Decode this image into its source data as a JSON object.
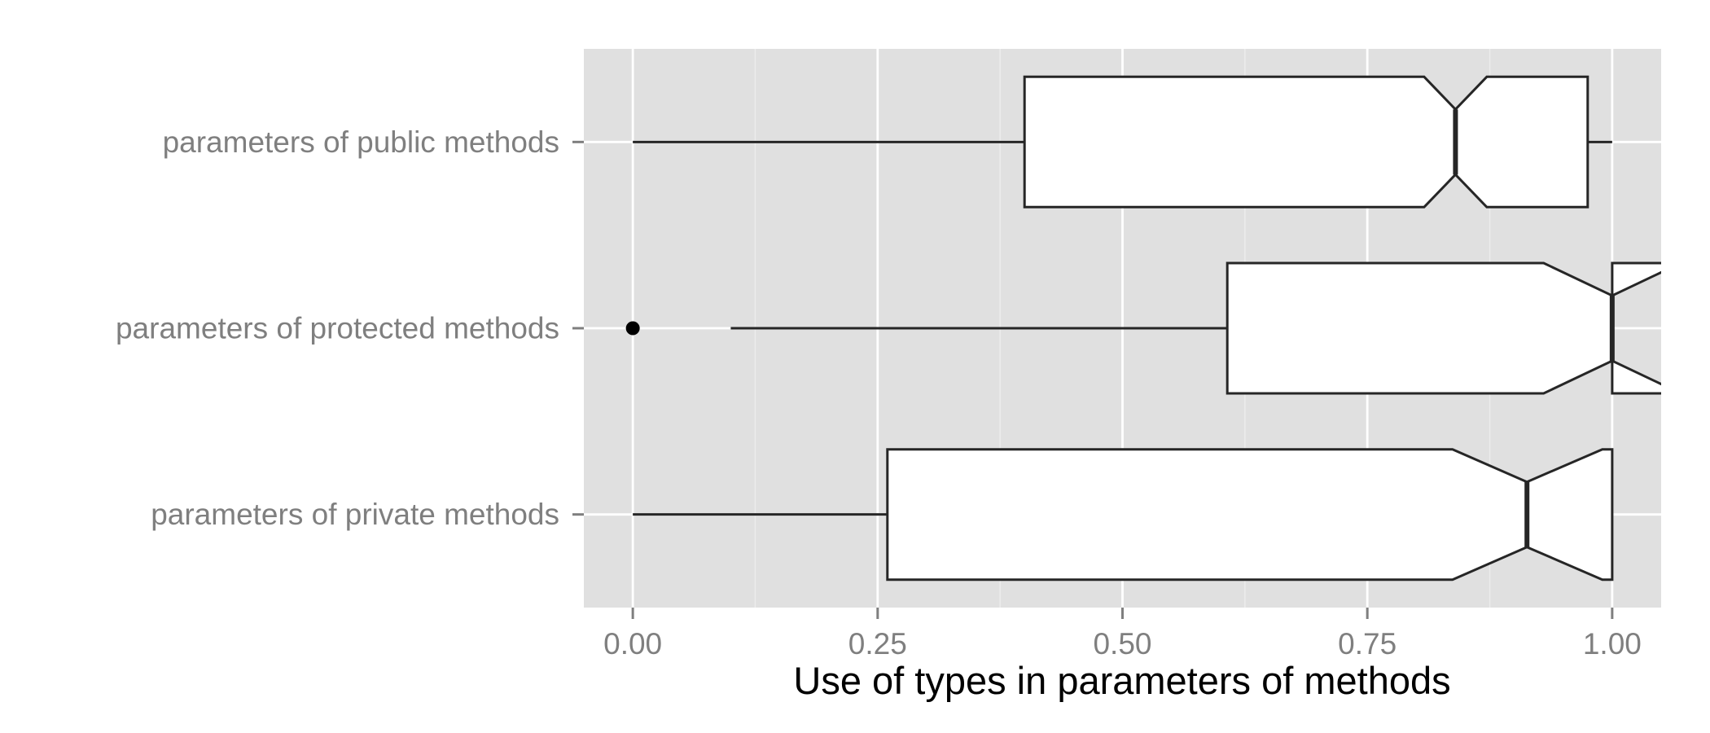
{
  "chart_data": {
    "type": "boxplot",
    "orientation": "horizontal",
    "notched": true,
    "title": "",
    "xlabel": "Use of types in parameters of methods",
    "ylabel": "",
    "xlim": [
      -0.05,
      1.05
    ],
    "x_ticks": [
      0,
      0.25,
      0.5,
      0.75,
      1
    ],
    "x_tick_labels": [
      "0.00",
      "0.25",
      "0.50",
      "0.75",
      "1.00"
    ],
    "grid": true,
    "categories": [
      "parameters of public methods",
      "parameters of protected methods",
      "parameters of private methods"
    ],
    "boxes": [
      {
        "label": "parameters of public methods",
        "whisker_low": 0.0,
        "q1": 0.4,
        "median": 0.84,
        "q3": 0.975,
        "whisker_high": 1.0,
        "notch_low": 0.808,
        "notch_high": 0.872,
        "outliers": []
      },
      {
        "label": "parameters of protected methods",
        "whisker_low": 0.1,
        "q1": 0.607,
        "median": 1.0,
        "q3": 1.0,
        "whisker_high": 1.0,
        "notch_low": 0.93,
        "notch_high": 1.07,
        "outliers": [
          0.0
        ]
      },
      {
        "label": "parameters of private methods",
        "whisker_low": 0.0,
        "q1": 0.26,
        "median": 0.913,
        "q3": 1.0,
        "whisker_high": 1.0,
        "notch_low": 0.837,
        "notch_high": 0.99,
        "outliers": []
      }
    ],
    "colors": {
      "panel_background": "#e0e0e0",
      "grid_major": "#ffffff",
      "grid_minor": "#ececec",
      "box_fill": "#ffffff",
      "box_stroke": "#262626",
      "tick_label": "#7f7f7f",
      "axis_title": "#000000",
      "outlier": "#000000"
    }
  }
}
